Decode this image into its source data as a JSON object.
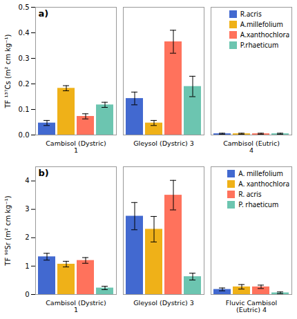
{
  "chart_data": [
    {
      "type": "bar",
      "title": "a)",
      "ylabel": "TF ¹³⁷Cs (m² cm kg⁻¹)",
      "categories": [
        "Cambisol (Dystric) 1",
        "Gleysol (Dystric) 3",
        "Cambisol (Eutric) 4"
      ],
      "series": [
        {
          "name": "R.acris",
          "values": [
            0.047,
            0.143,
            0.005
          ],
          "errors": [
            0.01,
            0.025,
            0.002
          ]
        },
        {
          "name": "A.millefolium",
          "values": [
            0.183,
            0.047,
            0.005
          ],
          "errors": [
            0.01,
            0.01,
            0.002
          ]
        },
        {
          "name": "A.xanthochlora",
          "values": [
            0.073,
            0.365,
            0.005
          ],
          "errors": [
            0.01,
            0.045,
            0.002
          ]
        },
        {
          "name": "P.rhaeticum",
          "values": [
            0.118,
            0.19,
            0.005
          ],
          "errors": [
            0.01,
            0.04,
            0.002
          ]
        }
      ],
      "ylim": [
        0,
        0.5
      ],
      "yticks": [
        {
          "value": 0,
          "label": "0.0"
        },
        0.1,
        0.2,
        0.3,
        0.4,
        0.5
      ],
      "legend": "upper right"
    },
    {
      "type": "bar",
      "title": "b)",
      "ylabel": "TF ⁹⁰Sr (m² cm kg⁻¹)",
      "categories": [
        "Cambisol (Dystric) 1",
        "Gleysol (Dystric) 3",
        "Fluvic Cambisol (Eutric) 4"
      ],
      "series": [
        {
          "name": "A. millefolium",
          "values": [
            1.33,
            2.76,
            0.18
          ],
          "errors": [
            0.12,
            0.48,
            0.05
          ]
        },
        {
          "name": "A. xanthochlora",
          "values": [
            1.07,
            2.3,
            0.27
          ],
          "errors": [
            0.1,
            0.45,
            0.08
          ]
        },
        {
          "name": "R. acris",
          "values": [
            1.2,
            3.5,
            0.27
          ],
          "errors": [
            0.1,
            0.52,
            0.06
          ]
        },
        {
          "name": "P. rhaeticum",
          "values": [
            0.23,
            0.63,
            0.06
          ],
          "errors": [
            0.06,
            0.12,
            0.03
          ]
        }
      ],
      "ylim": [
        0,
        4.5
      ],
      "yticks": [
        0,
        1,
        2,
        3,
        4
      ],
      "legend": "upper right"
    }
  ]
}
